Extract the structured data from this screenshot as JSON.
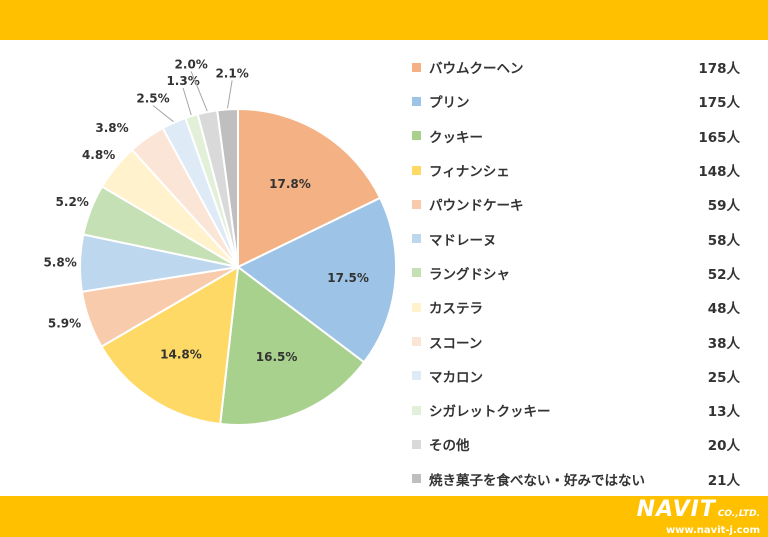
{
  "brand": {
    "name": "NAVIT",
    "suffix": "CO.,LTD.",
    "url": "www.navit-j.com",
    "bar_color": "#ffc000"
  },
  "chart_data": {
    "type": "pie",
    "title": "",
    "slices": [
      {
        "label": "バウムクーヘン",
        "count": "178人",
        "percent": "17.8%",
        "value": 17.8,
        "color": "#f4b183"
      },
      {
        "label": "プリン",
        "count": "175人",
        "percent": "17.5%",
        "value": 17.5,
        "color": "#9dc3e6"
      },
      {
        "label": "クッキー",
        "count": "165人",
        "percent": "16.5%",
        "value": 16.5,
        "color": "#a9d18e"
      },
      {
        "label": "フィナンシェ",
        "count": "148人",
        "percent": "14.8%",
        "value": 14.8,
        "color": "#ffd966"
      },
      {
        "label": "パウンドケーキ",
        "count": "59人",
        "percent": "5.9%",
        "value": 5.9,
        "color": "#f8cbad"
      },
      {
        "label": "マドレーヌ",
        "count": "58人",
        "percent": "5.8%",
        "value": 5.8,
        "color": "#bdd7ee"
      },
      {
        "label": "ラングドシャ",
        "count": "52人",
        "percent": "5.2%",
        "value": 5.2,
        "color": "#c5e0b4"
      },
      {
        "label": "カステラ",
        "count": "48人",
        "percent": "4.8%",
        "value": 4.8,
        "color": "#fff2cc"
      },
      {
        "label": "スコーン",
        "count": "38人",
        "percent": "3.8%",
        "value": 3.8,
        "color": "#fbe5d6"
      },
      {
        "label": "マカロン",
        "count": "25人",
        "percent": "2.5%",
        "value": 2.5,
        "color": "#deebf7"
      },
      {
        "label": "シガレットクッキー",
        "count": "13人",
        "percent": "1.3%",
        "value": 1.3,
        "color": "#e2f0d9"
      },
      {
        "label": "その他",
        "count": "20人",
        "percent": "2.0%",
        "value": 2.0,
        "color": "#d9d9d9"
      },
      {
        "label": "焼き菓子を食べない・好みではない",
        "count": "21人",
        "percent": "2.1%",
        "value": 2.1,
        "color": "#bfbfbf"
      }
    ]
  }
}
